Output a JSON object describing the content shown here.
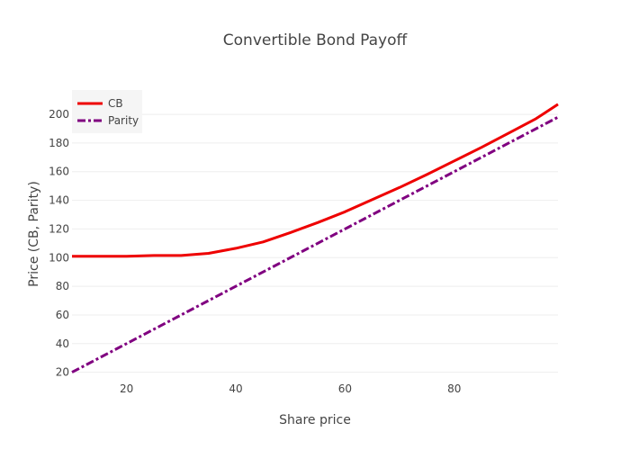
{
  "chart_data": {
    "type": "line",
    "title": "Convertible Bond Payoff",
    "xlabel": "Share price",
    "ylabel": "Price (CB, Parity)",
    "xlim": [
      10,
      99
    ],
    "ylim": [
      16,
      217
    ],
    "xticks": [
      20,
      40,
      60,
      80
    ],
    "yticks": [
      20,
      40,
      60,
      80,
      100,
      120,
      140,
      160,
      180,
      200
    ],
    "grid": true,
    "legend_position": "top-left",
    "series": [
      {
        "name": "CB",
        "color": "#ee0000",
        "dash": "solid",
        "x": [
          10,
          15,
          20,
          25,
          30,
          35,
          40,
          45,
          50,
          55,
          60,
          65,
          70,
          75,
          80,
          85,
          90,
          95,
          99
        ],
        "y": [
          101,
          101,
          101,
          101.5,
          101.5,
          103,
          106.5,
          111,
          117.5,
          124.5,
          132,
          140.5,
          149,
          158,
          167.5,
          177,
          187,
          197,
          207
        ]
      },
      {
        "name": "Parity",
        "color": "#800080",
        "dash": "dashdot",
        "x": [
          10,
          99
        ],
        "y": [
          20,
          198
        ]
      }
    ]
  }
}
